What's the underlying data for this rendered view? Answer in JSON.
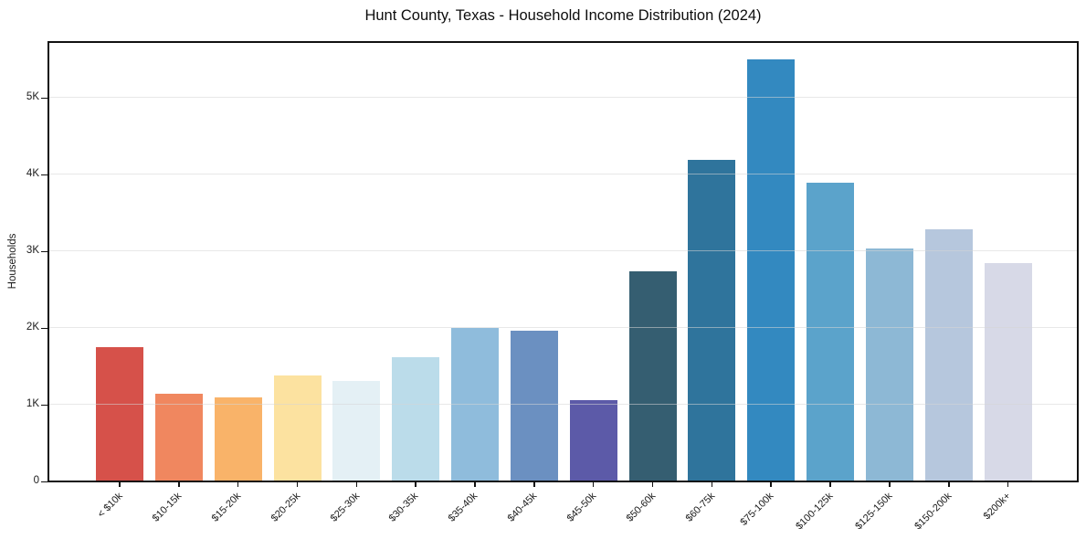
{
  "chart_data": {
    "type": "bar",
    "title": "Hunt County, Texas - Household Income Distribution (2024)",
    "xlabel": "",
    "ylabel": "Households",
    "categories": [
      "< $10k",
      "$10-15k",
      "$15-20k",
      "$20-25k",
      "$25-30k",
      "$30-35k",
      "$35-40k",
      "$40-45k",
      "$45-50k",
      "$50-60k",
      "$60-75k",
      "$75-100k",
      "$100-125k",
      "$125-150k",
      "$150-200k",
      "$200k+"
    ],
    "values": [
      1740,
      1130,
      1080,
      1370,
      1300,
      1610,
      1990,
      1950,
      1050,
      2730,
      4180,
      5490,
      3880,
      3020,
      3270,
      2830
    ],
    "bar_colors": [
      "#d6514a",
      "#f0875f",
      "#f9b369",
      "#fce2a0",
      "#e4f0f5",
      "#bbdcea",
      "#8fbcdc",
      "#6b90c1",
      "#5c5aa8",
      "#355e71",
      "#2f749c",
      "#3389c0",
      "#5ba3cb",
      "#8db8d5",
      "#b6c7dd",
      "#d7d9e7"
    ],
    "ylim": [
      0,
      5750
    ],
    "yticks": [
      {
        "value": 0,
        "label": "0"
      },
      {
        "value": 1000,
        "label": "1K"
      },
      {
        "value": 2000,
        "label": "2K"
      },
      {
        "value": 3000,
        "label": "3K"
      },
      {
        "value": 4000,
        "label": "4K"
      },
      {
        "value": 5000,
        "label": "5K"
      }
    ],
    "grid": "horizontal",
    "legend": "none",
    "frame_color": "#111111",
    "background_color": "#ffffff"
  }
}
